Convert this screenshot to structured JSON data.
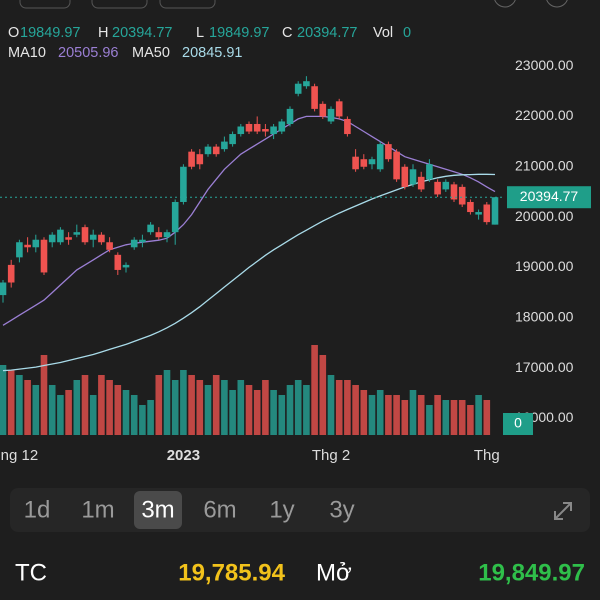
{
  "chart_data": {
    "type": "candlestick",
    "legend_labels": {
      "open": "O",
      "high": "H",
      "low": "L",
      "close": "C",
      "volume": "Vol"
    },
    "up_color": "#26a69a",
    "down_color": "#ef5350",
    "categories": [
      null,
      null,
      "ng 12",
      null,
      null,
      null,
      null,
      null,
      null,
      null,
      null,
      null,
      null,
      null,
      null,
      null,
      null,
      null,
      null,
      null,
      null,
      null,
      "2023",
      null,
      null,
      null,
      null,
      null,
      null,
      null,
      null,
      null,
      null,
      null,
      null,
      null,
      null,
      null,
      null,
      null,
      "Thg 2",
      null,
      null,
      null,
      null,
      null,
      null,
      null,
      null,
      null,
      null,
      null,
      null,
      null,
      null,
      null,
      null,
      null,
      null,
      "Thg",
      null
    ],
    "open": [
      18450,
      19050,
      19200,
      19450,
      19400,
      19550,
      19500,
      19500,
      19600,
      19650,
      19800,
      19550,
      19650,
      19500,
      19250,
      19000,
      19400,
      19500,
      19700,
      19700,
      19600,
      19700,
      20300,
      21300,
      21250,
      21250,
      21400,
      21350,
      21450,
      21650,
      21850,
      21850,
      21750,
      21650,
      21700,
      21850,
      22450,
      22600,
      22600,
      22250,
      21900,
      22300,
      21950,
      21200,
      21150,
      21050,
      20950,
      21450,
      21300,
      21000,
      20650,
      20800,
      20750,
      20700,
      20550,
      20650,
      20600,
      20300,
      20050,
      20250,
      19849.97
    ],
    "high": [
      18750,
      19150,
      19550,
      19600,
      19650,
      19600,
      19700,
      19800,
      19700,
      19850,
      19850,
      19750,
      19700,
      19600,
      19300,
      19100,
      19600,
      19650,
      19900,
      19800,
      19750,
      20350,
      21050,
      21350,
      21350,
      21450,
      21450,
      21600,
      21700,
      21850,
      21900,
      22000,
      21850,
      21850,
      21950,
      22200,
      22700,
      22800,
      22650,
      22300,
      22200,
      22350,
      22000,
      21350,
      21250,
      21200,
      21500,
      21500,
      21350,
      21050,
      21050,
      20900,
      21150,
      20750,
      20750,
      20700,
      20650,
      20350,
      20150,
      20300,
      20394.77
    ],
    "low": [
      18300,
      18600,
      19100,
      19300,
      19300,
      18850,
      19400,
      19450,
      19450,
      19600,
      19450,
      19400,
      19450,
      19300,
      18850,
      18900,
      19350,
      19400,
      19650,
      19550,
      19500,
      19450,
      20250,
      20950,
      20950,
      21200,
      21200,
      21300,
      21400,
      21600,
      21650,
      21650,
      21600,
      21550,
      21650,
      21800,
      22400,
      22550,
      22100,
      21950,
      21850,
      21950,
      21600,
      20900,
      20950,
      20950,
      20900,
      21100,
      20700,
      20550,
      20600,
      20500,
      20700,
      20400,
      20500,
      20300,
      20200,
      20050,
      19950,
      19850,
      19849.97
    ],
    "close": [
      18700,
      18700,
      19500,
      19400,
      19550,
      18900,
      19650,
      19750,
      19550,
      19700,
      19500,
      19650,
      19500,
      19350,
      18950,
      19050,
      19550,
      19550,
      19850,
      19600,
      19700,
      20300,
      21000,
      21000,
      21050,
      21400,
      21250,
      21500,
      21650,
      21800,
      21700,
      21700,
      21700,
      21800,
      21900,
      22150,
      22650,
      22700,
      22150,
      22000,
      22150,
      22000,
      21650,
      20950,
      21000,
      21150,
      21450,
      21150,
      20750,
      20600,
      20950,
      20550,
      21050,
      20450,
      20700,
      20350,
      20250,
      20100,
      20100,
      19900,
      20394.77
    ],
    "volume": [
      70,
      65,
      60,
      55,
      50,
      80,
      50,
      40,
      45,
      55,
      60,
      40,
      60,
      55,
      50,
      45,
      40,
      30,
      35,
      60,
      65,
      55,
      65,
      60,
      55,
      50,
      60,
      55,
      45,
      55,
      50,
      45,
      55,
      45,
      40,
      50,
      55,
      50,
      90,
      80,
      60,
      55,
      55,
      50,
      45,
      40,
      45,
      40,
      40,
      35,
      45,
      40,
      30,
      40,
      35,
      35,
      35,
      30,
      40,
      35,
      0
    ],
    "series": [
      {
        "name": "MA10",
        "color": "#9b7fd4",
        "values": [
          17850,
          17950,
          18050,
          18150,
          18250,
          18350,
          18500,
          18650,
          18800,
          18950,
          19050,
          19150,
          19250,
          19350,
          19400,
          19450,
          19480,
          19500,
          19520,
          19540,
          19580,
          19700,
          19850,
          20050,
          20300,
          20550,
          20750,
          20950,
          21100,
          21250,
          21350,
          21450,
          21550,
          21650,
          21750,
          21850,
          21950,
          22000,
          22000,
          22000,
          21980,
          21950,
          21900,
          21800,
          21700,
          21600,
          21500,
          21400,
          21300,
          21200,
          21150,
          21100,
          21050,
          21000,
          20950,
          20900,
          20850,
          20780,
          20700,
          20600,
          20505.96
        ]
      },
      {
        "name": "MA50",
        "color": "#a9dbe9",
        "values": [
          16950,
          16960,
          16980,
          17000,
          17020,
          17050,
          17080,
          17110,
          17150,
          17190,
          17230,
          17270,
          17320,
          17370,
          17420,
          17470,
          17530,
          17590,
          17650,
          17720,
          17800,
          17890,
          17990,
          18100,
          18220,
          18350,
          18480,
          18610,
          18740,
          18870,
          19000,
          19120,
          19240,
          19350,
          19450,
          19550,
          19650,
          19740,
          19830,
          19920,
          20000,
          20080,
          20150,
          20220,
          20290,
          20360,
          20420,
          20480,
          20540,
          20600,
          20650,
          20700,
          20740,
          20780,
          20810,
          20830,
          20840,
          20845,
          20850,
          20850,
          20845.91
        ]
      }
    ],
    "ylim": [
      15670,
      23320
    ],
    "yticks": [
      {
        "value": 16000,
        "label": "16000.00"
      },
      {
        "value": 17000,
        "label": "17000.00"
      },
      {
        "value": 18000,
        "label": "18000.00"
      },
      {
        "value": 19000,
        "label": "19000.00"
      },
      {
        "value": 20000,
        "label": "20000.00"
      },
      {
        "value": 21000,
        "label": "21000.00"
      },
      {
        "value": 22000,
        "label": "22000.00"
      },
      {
        "value": 23000,
        "label": "23000.00"
      }
    ],
    "y2lim": [
      0,
      100
    ],
    "grid": false
  },
  "ui": {
    "periods": [
      "1d",
      "1m",
      "3m",
      "6m",
      "1y",
      "3y"
    ],
    "selected_period": 2,
    "stats": [
      {
        "label": "TC",
        "value": "19,785.94"
      },
      {
        "label": "Mở",
        "value": "19,849.97"
      }
    ]
  }
}
